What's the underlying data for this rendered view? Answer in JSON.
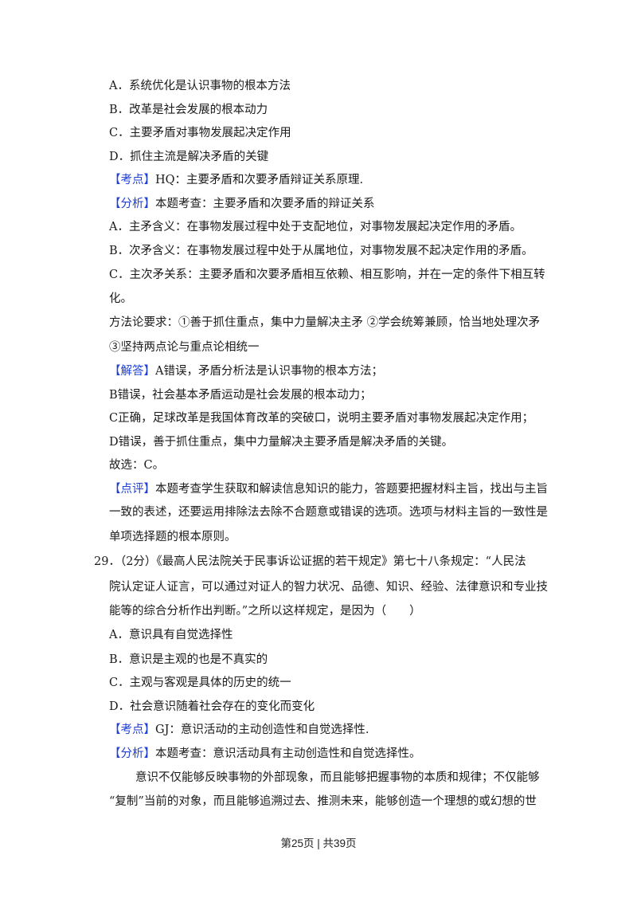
{
  "lines": [
    {
      "text": "A．系统优化是认识事物的根本方法"
    },
    {
      "text": "B．改革是社会发展的根本动力"
    },
    {
      "text": "C．主要矛盾对事物发展起决定作用"
    },
    {
      "text": "D．抓住主流是解决矛盾的关键"
    },
    {
      "tag": "【考点】",
      "text": "HQ：主要矛盾和次要矛盾辩证关系原理."
    },
    {
      "tag": "【分析】",
      "text": "本题考查：主要矛盾和次要矛盾的辩证关系"
    },
    {
      "text": "A．主矛含义：在事物发展过程中处于支配地位，对事物发展起决定作用的矛盾。"
    },
    {
      "text": "B．次矛含义：在事物发展过程中处于从属地位，对事物发展不起决定作用的矛盾。"
    },
    {
      "text": "C．主次矛关系：主要矛盾和次要矛盾相互依赖、相互影响，并在一定的条件下相互转"
    },
    {
      "text": "化。"
    },
    {
      "text": "方法论要求：①善于抓住重点，集中力量解决主矛 ②学会统筹兼顾，恰当地处理次矛"
    },
    {
      "text": "③坚持两点论与重点论相统一"
    },
    {
      "tag": "【解答】",
      "text": "A错误，矛盾分析法是认识事物的根本方法；"
    },
    {
      "text": "B错误，社会基本矛盾运动是社会发展的根本动力；"
    },
    {
      "text": "C正确，足球改革是我国体育改革的突破口，说明主要矛盾对事物发展起决定作用；"
    },
    {
      "text": "D错误，善于抓住重点，集中力量解决主要矛盾是解决矛盾的关键。"
    },
    {
      "text": "故选：C。"
    },
    {
      "tag": "【点评】",
      "text": "本题考查学生获取和解读信息知识的能力，答题要把握材料主旨，找出与主旨"
    },
    {
      "text": "一致的表述，还要运用排除法去除不合题意或错误的选项。选项与材料主旨的一致性是"
    },
    {
      "text": "单项选择题的根本原则。"
    },
    {
      "text": "29．（2分）《最高人民法院关于民事诉讼证据的若干规定》第七十八条规定：“人民法"
    },
    {
      "text": "院认定证人证言，可以通过对证人的智力状况、品德、知识、经验、法律意识和专业技"
    },
    {
      "text": "能等的综合分析作出判断。”之所以这样规定，是因为（　　）"
    },
    {
      "text": "A．意识具有自觉选择性"
    },
    {
      "text": "B．意识是主观的也是不真实的"
    },
    {
      "text": "C．主观与客观是具体的历史的统一"
    },
    {
      "text": "D．社会意识随着社会存在的变化而变化"
    },
    {
      "tag": "【考点】",
      "text": "GJ：意识活动的主动创造性和自觉选择性."
    },
    {
      "tag": "【分析】",
      "text": "本题考查：意识活动具有主动创造性和自觉选择性。"
    },
    {
      "text": "意识不仅能够反映事物的外部现象，而且能够把握事物的本质和规律；不仅能够"
    },
    {
      "text": "“复制”当前的对象，而且能够追溯过去、推测未来，能够创造一个理想的或幻想的世"
    }
  ],
  "footer": "第25页 | 共39页",
  "colors": {
    "tag": "#1f3fd6",
    "text": "#1a1a1a"
  }
}
